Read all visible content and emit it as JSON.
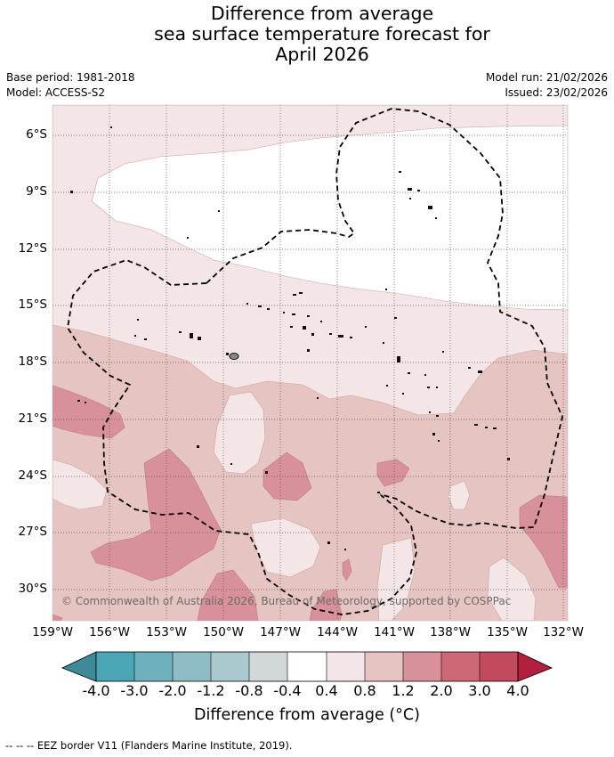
{
  "title": {
    "line1": "Difference from average",
    "line2": "sea surface temperature forecast for",
    "line3": "April 2026"
  },
  "meta": {
    "base_period": "Base period: 1981-2018",
    "model": "Model: ACCESS-S2",
    "model_run": "Model run: 21/02/2026",
    "issued": "Issued: 23/02/2026"
  },
  "map": {
    "latitude_labels": [
      "6°S",
      "9°S",
      "12°S",
      "15°S",
      "18°S",
      "21°S",
      "24°S",
      "27°S",
      "30°S"
    ],
    "longitude_labels": [
      "159°W",
      "156°W",
      "153°W",
      "150°W",
      "147°W",
      "144°W",
      "141°W",
      "138°W",
      "135°W",
      "132°W"
    ],
    "credit": "© Commonwealth of Australia 2026, Bureau of Meteorology, supported by COSPPac"
  },
  "colorbar": {
    "ticks": [
      "-4.0",
      "-3.0",
      "-2.0",
      "-1.2",
      "-0.8",
      "-0.4",
      "0.4",
      "0.8",
      "1.2",
      "2.0",
      "3.0",
      "4.0"
    ],
    "colors": [
      "#3e8a96",
      "#4aa6b5",
      "#6fb0be",
      "#8ebdc6",
      "#a9c9ce",
      "#d2d7d8",
      "#ffffff",
      "#f4e6e6",
      "#e6c4c2",
      "#d8919a",
      "#cd6877",
      "#c14a5d",
      "#b31f3e"
    ],
    "label": "Difference from average (°C)"
  },
  "footer": "--  --  -- EEZ border V11 (Flanders Marine Institute, 2019)."
}
